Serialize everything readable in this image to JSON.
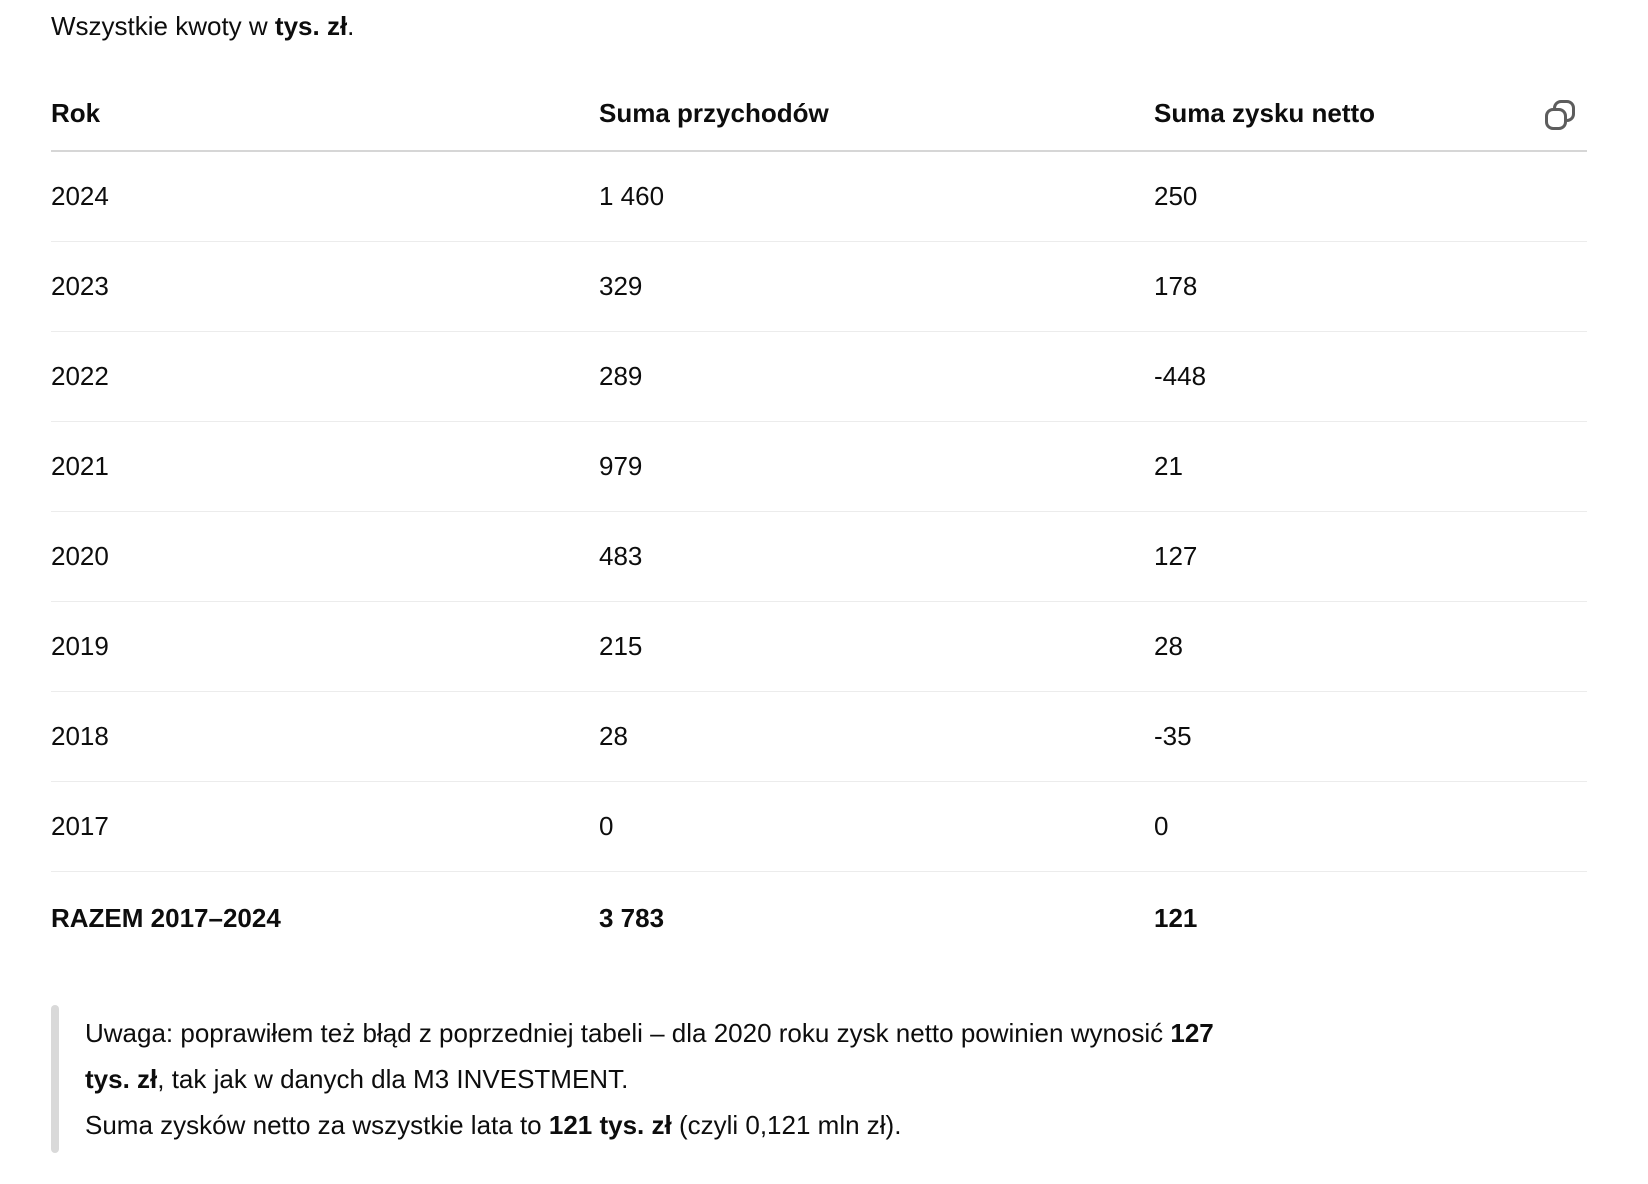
{
  "intro": {
    "segments": [
      {
        "text": "Wszystkie kwoty w ",
        "bold": false
      },
      {
        "text": "tys. zł",
        "bold": true
      },
      {
        "text": ".",
        "bold": false
      }
    ]
  },
  "table": {
    "columns": [
      "Rok",
      "Suma przychodów",
      "Suma zysku netto"
    ],
    "copy_button": {
      "icon": "copy-icon",
      "tooltip": ""
    },
    "rows": [
      {
        "rok": "2024",
        "przychody": "1 460",
        "zysk": "250"
      },
      {
        "rok": "2023",
        "przychody": "329",
        "zysk": "178"
      },
      {
        "rok": "2022",
        "przychody": "289",
        "zysk": "-448"
      },
      {
        "rok": "2021",
        "przychody": "979",
        "zysk": "21"
      },
      {
        "rok": "2020",
        "przychody": "483",
        "zysk": "127"
      },
      {
        "rok": "2019",
        "przychody": "215",
        "zysk": "28"
      },
      {
        "rok": "2018",
        "przychody": "28",
        "zysk": "-35"
      },
      {
        "rok": "2017",
        "przychody": "0",
        "zysk": "0"
      }
    ],
    "total_row": {
      "rok": "RAZEM 2017–2024",
      "przychody": "3 783",
      "zysk": "121"
    }
  },
  "note": {
    "lines": [
      {
        "segments": [
          {
            "text": "Uwaga: poprawiłem też błąd z poprzedniej tabeli – dla 2020 roku zysk netto powinien wynosić ",
            "bold": false
          },
          {
            "text": "127",
            "bold": true
          }
        ]
      },
      {
        "segments": [
          {
            "text": "tys. zł",
            "bold": true
          },
          {
            "text": ", tak jak w danych dla M3 INVESTMENT.",
            "bold": false
          }
        ]
      },
      {
        "segments": [
          {
            "text": "Suma zysków netto za wszystkie lata to ",
            "bold": false
          },
          {
            "text": "121 tys. zł",
            "bold": true
          },
          {
            "text": " (czyli 0,121 mln zł).",
            "bold": false
          }
        ]
      }
    ]
  },
  "colors": {
    "text": "#0d0d0d",
    "header_border": "#d6d6d6",
    "row_border": "#ececec",
    "quote_bar": "#d9d9d9",
    "icon": "#5d5d5d",
    "background": "#ffffff"
  }
}
